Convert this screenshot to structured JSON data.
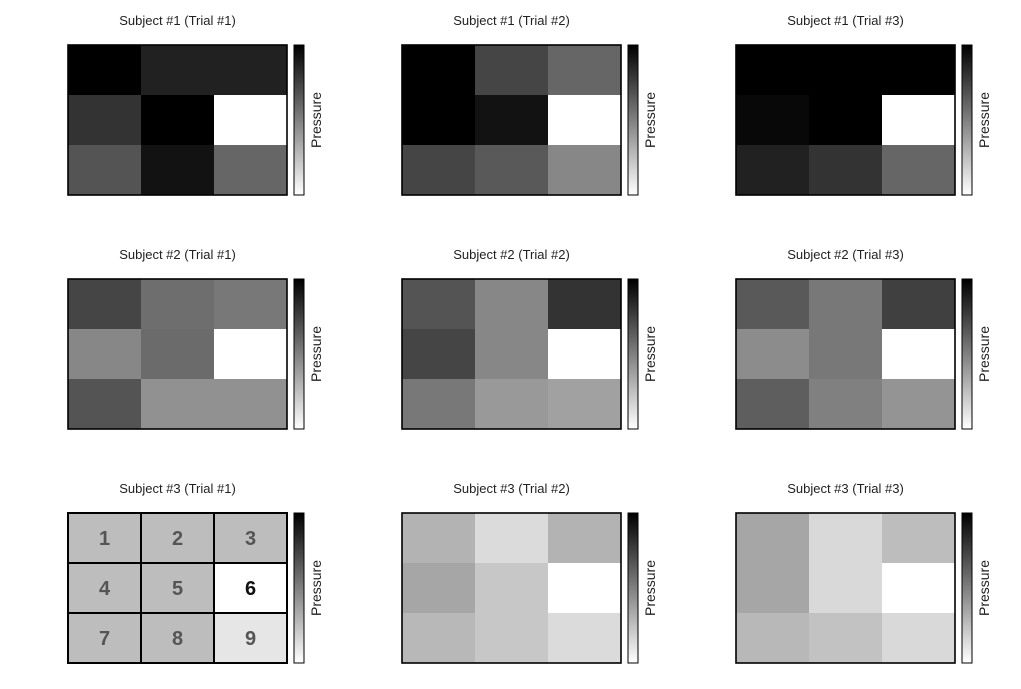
{
  "chart_data": {
    "type": "heatmap",
    "layout": "3x3 grid of panels",
    "colormap": "gray: low = black, high = white",
    "colorbar_label": "Pressure",
    "panels": [
      {
        "title": "Subject #1 (Trial #1)",
        "values": [
          [
            0.0,
            0.13,
            0.13
          ],
          [
            0.2,
            0.0,
            1.0
          ],
          [
            0.33,
            0.07,
            0.4
          ]
        ]
      },
      {
        "title": "Subject #1 (Trial #2)",
        "values": [
          [
            0.0,
            0.27,
            0.4
          ],
          [
            0.0,
            0.07,
            1.0
          ],
          [
            0.27,
            0.35,
            0.53
          ]
        ]
      },
      {
        "title": "Subject #1 (Trial #3)",
        "values": [
          [
            0.0,
            0.0,
            0.0
          ],
          [
            0.03,
            0.0,
            1.0
          ],
          [
            0.13,
            0.2,
            0.4
          ]
        ]
      },
      {
        "title": "Subject #2 (Trial #1)",
        "values": [
          [
            0.27,
            0.43,
            0.47
          ],
          [
            0.53,
            0.42,
            1.0
          ],
          [
            0.33,
            0.57,
            0.57
          ]
        ]
      },
      {
        "title": "Subject #2 (Trial #2)",
        "values": [
          [
            0.33,
            0.53,
            0.2
          ],
          [
            0.27,
            0.53,
            1.0
          ],
          [
            0.47,
            0.6,
            0.63
          ]
        ]
      },
      {
        "title": "Subject #2 (Trial #3)",
        "values": [
          [
            0.35,
            0.47,
            0.25
          ],
          [
            0.55,
            0.47,
            1.0
          ],
          [
            0.37,
            0.5,
            0.58
          ]
        ]
      },
      {
        "title": "Subject #3 (Trial #1)",
        "values": [
          [
            0.74,
            0.74,
            0.74
          ],
          [
            0.74,
            0.74,
            1.0
          ],
          [
            0.74,
            0.74,
            0.9
          ]
        ],
        "cell_labels": [
          "1",
          "2",
          "3",
          "4",
          "5",
          "6",
          "7",
          "8",
          "9"
        ]
      },
      {
        "title": "Subject #3 (Trial #2)",
        "values": [
          [
            0.7,
            0.86,
            0.7
          ],
          [
            0.65,
            0.78,
            1.0
          ],
          [
            0.72,
            0.78,
            0.86
          ]
        ]
      },
      {
        "title": "Subject #3 (Trial #3)",
        "values": [
          [
            0.65,
            0.85,
            0.74
          ],
          [
            0.65,
            0.85,
            1.0
          ],
          [
            0.72,
            0.76,
            0.85
          ]
        ]
      }
    ]
  }
}
